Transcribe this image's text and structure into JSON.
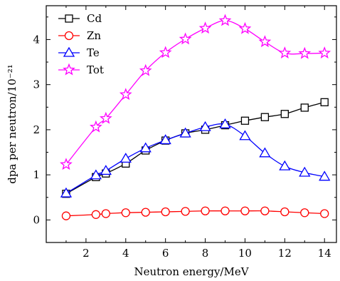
{
  "chart_data": {
    "type": "line",
    "xlabel": "Neutron energy/MeV",
    "ylabel": "dpa per neutron/10⁻²¹",
    "xlim": [
      0,
      14.6
    ],
    "ylim": [
      -0.5,
      4.75
    ],
    "xticks": [
      2,
      4,
      6,
      8,
      10,
      12,
      14
    ],
    "yticks": [
      0,
      1,
      2,
      3,
      4
    ],
    "x": [
      1,
      2.5,
      3,
      4,
      5,
      6,
      7,
      8,
      9,
      10,
      11,
      12,
      13,
      14
    ],
    "legend_position": "top-left",
    "grid": false,
    "series": [
      {
        "name": "Cd",
        "color": "#000000",
        "marker": "square",
        "values": [
          0.58,
          0.95,
          1.03,
          1.25,
          1.54,
          1.76,
          1.92,
          2.0,
          2.1,
          2.2,
          2.28,
          2.35,
          2.49,
          2.61
        ]
      },
      {
        "name": "Zn",
        "color": "#ff0000",
        "marker": "circle",
        "values": [
          0.09,
          0.12,
          0.14,
          0.16,
          0.17,
          0.18,
          0.19,
          0.2,
          0.2,
          0.2,
          0.2,
          0.18,
          0.16,
          0.14
        ]
      },
      {
        "name": "Te",
        "color": "#0000ff",
        "marker": "triangle",
        "values": [
          0.59,
          0.99,
          1.09,
          1.36,
          1.59,
          1.77,
          1.92,
          2.06,
          2.12,
          1.86,
          1.48,
          1.19,
          1.05,
          0.96
        ]
      },
      {
        "name": "Tot",
        "color": "#ff00ff",
        "marker": "star",
        "values": [
          1.23,
          2.06,
          2.25,
          2.78,
          3.31,
          3.71,
          4.01,
          4.25,
          4.42,
          4.24,
          3.95,
          3.7,
          3.69,
          3.7
        ]
      }
    ]
  }
}
